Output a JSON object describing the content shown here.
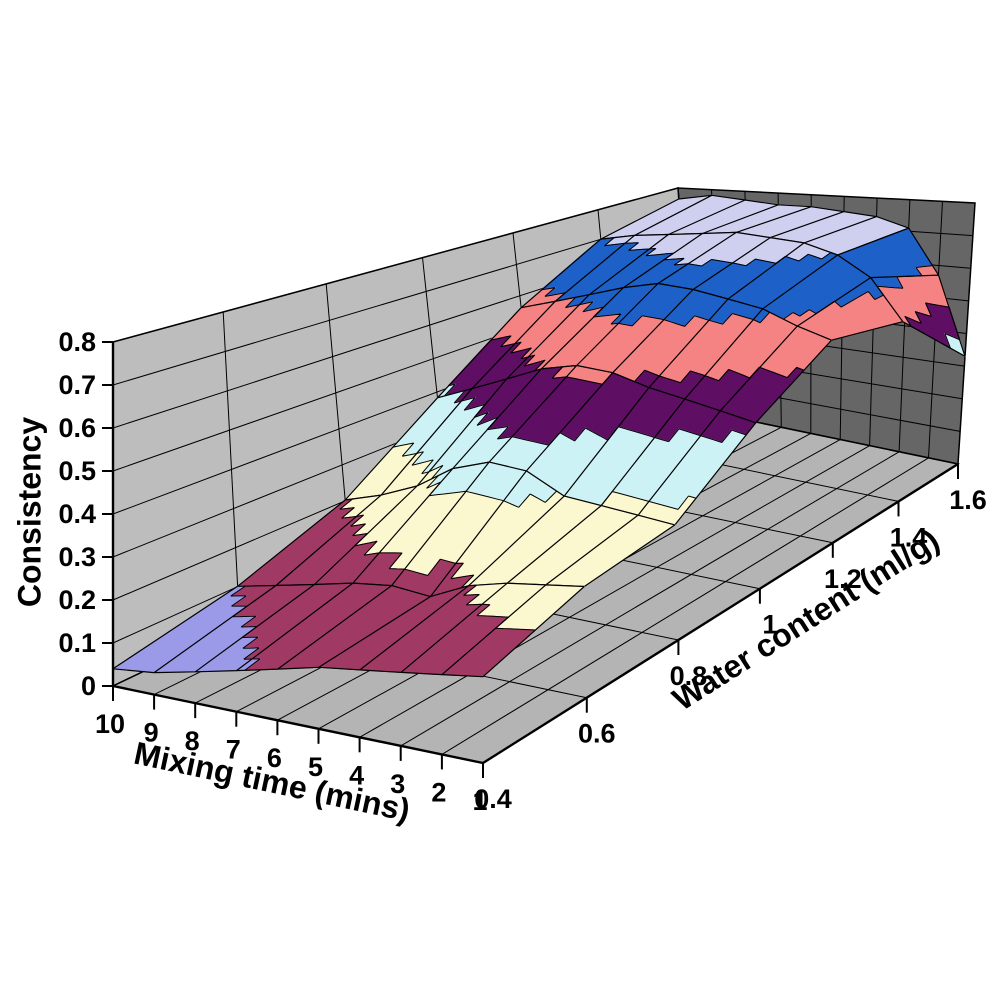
{
  "chart_data": {
    "type": "surface3d",
    "title": "",
    "x": {
      "label": "Mixing time (mins)",
      "ticks": [
        "10",
        "9",
        "8",
        "7",
        "6",
        "5",
        "4",
        "3",
        "2",
        "1"
      ],
      "values": [
        10,
        9,
        8,
        7,
        6,
        5,
        4,
        3,
        2,
        1
      ]
    },
    "y": {
      "label": "Water content (ml/g)",
      "ticks": [
        "0.4",
        "0.6",
        "0.8",
        "1",
        "1.2",
        "1.4",
        "1.6"
      ],
      "values": [
        0.4,
        0.6,
        0.8,
        1.0,
        1.2,
        1.4,
        1.6
      ]
    },
    "z": {
      "label": "Consistency",
      "ticks": [
        "0",
        "0.1",
        "0.2",
        "0.3",
        "0.4",
        "0.5",
        "0.6",
        "0.7",
        "0.8"
      ],
      "min": 0,
      "max": 0.8,
      "step": 0.1
    },
    "legend": "none",
    "grid": true,
    "bands": [
      {
        "range": [
          0.0,
          0.1
        ],
        "color": "#9A9AE8"
      },
      {
        "range": [
          0.1,
          0.2
        ],
        "color": "#A03A64"
      },
      {
        "range": [
          0.2,
          0.3
        ],
        "color": "#FBF7CE"
      },
      {
        "range": [
          0.3,
          0.4
        ],
        "color": "#CDF2F6"
      },
      {
        "range": [
          0.4,
          0.5
        ],
        "color": "#5E0E63"
      },
      {
        "range": [
          0.5,
          0.6
        ],
        "color": "#F58383"
      },
      {
        "range": [
          0.6,
          0.7
        ],
        "color": "#1C60C8"
      },
      {
        "range": [
          0.7,
          0.8
        ],
        "color": "#CFCFF0"
      }
    ],
    "series": [
      {
        "name": "0.4",
        "values": [
          0.04,
          0.05,
          0.07,
          0.09,
          0.11,
          0.13,
          0.14,
          0.15,
          0.16,
          0.17
        ]
      },
      {
        "name": "0.6",
        "values": [
          0.1,
          0.12,
          0.14,
          0.16,
          0.17,
          0.16,
          0.2,
          0.22,
          0.23,
          0.24
        ]
      },
      {
        "name": "0.8",
        "values": [
          0.2,
          0.23,
          0.27,
          0.33,
          0.36,
          0.35,
          0.3,
          0.29,
          0.28,
          0.27
        ]
      },
      {
        "name": "1",
        "values": [
          0.38,
          0.42,
          0.46,
          0.5,
          0.52,
          0.51,
          0.48,
          0.46,
          0.44,
          0.42
        ]
      },
      {
        "name": "1.2",
        "values": [
          0.56,
          0.59,
          0.62,
          0.65,
          0.67,
          0.66,
          0.64,
          0.62,
          0.58,
          0.55
        ]
      },
      {
        "name": "1.4",
        "values": [
          0.7,
          0.72,
          0.73,
          0.74,
          0.75,
          0.74,
          0.73,
          0.7,
          0.64,
          0.52
        ]
      },
      {
        "name": "1.6",
        "values": [
          0.76,
          0.78,
          0.77,
          0.76,
          0.76,
          0.75,
          0.74,
          0.71,
          0.57,
          0.33
        ]
      }
    ]
  },
  "colors": {
    "background": "#FFFFFF",
    "side_wall": "#BDBDBD",
    "back_wall": "#666666",
    "floor": "#B4B4B4",
    "grid_line": "#000000",
    "text": "#000000"
  }
}
